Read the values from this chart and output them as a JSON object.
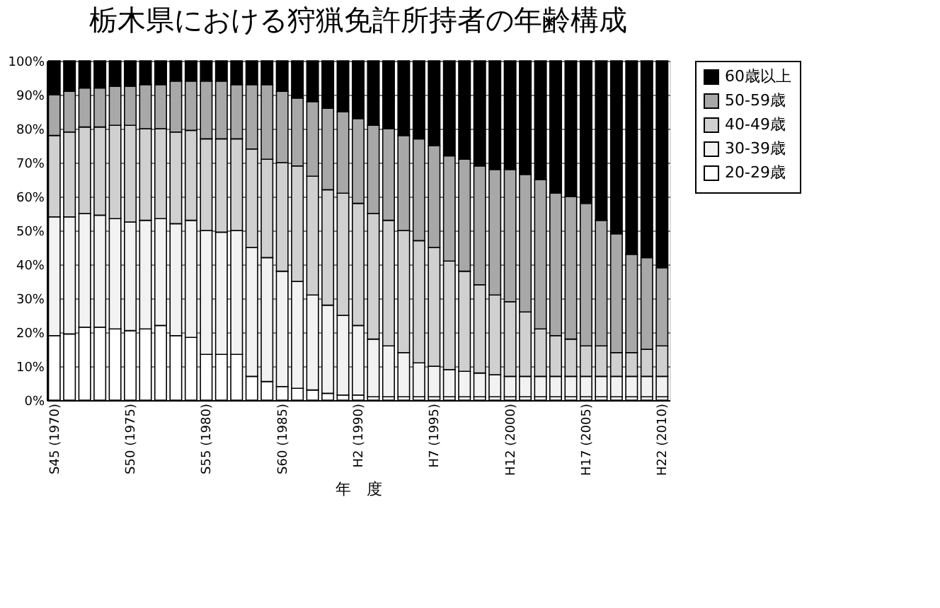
{
  "chart_data": {
    "type": "bar",
    "stacked": true,
    "title": "栃木県における狩猟免許所持者の年齢構成",
    "xlabel": "年　度",
    "categories": [
      "S45 (1970)",
      null,
      null,
      null,
      null,
      "S50 (1975)",
      null,
      null,
      null,
      null,
      "S55 (1980)",
      null,
      null,
      null,
      null,
      "S60 (1985)",
      null,
      null,
      null,
      null,
      "H2 (1990)",
      null,
      null,
      null,
      null,
      "H7 (1995)",
      null,
      null,
      null,
      null,
      "H12 (2000)",
      null,
      null,
      null,
      null,
      "H17 (2005)",
      null,
      null,
      null,
      null,
      "H22 (2010)"
    ],
    "series": [
      {
        "name": "20-29歳",
        "color": "#ffffff",
        "values": [
          19,
          19.5,
          21.5,
          21.5,
          21,
          20.5,
          21,
          22,
          19,
          18.5,
          13.5,
          13.5,
          13.5,
          7,
          5.5,
          4,
          3.5,
          3,
          2,
          1.5,
          1.5,
          1,
          1,
          1,
          1,
          1,
          1,
          1,
          1,
          1,
          1,
          1,
          1,
          1,
          1,
          1,
          1,
          1,
          1,
          1,
          1
        ]
      },
      {
        "name": "30-39歳",
        "color": "#f2f2f2",
        "values": [
          35,
          34.5,
          33.5,
          33,
          32.5,
          32,
          32,
          31.5,
          33,
          34.5,
          36.5,
          36,
          36.5,
          38,
          36.5,
          34,
          31.5,
          28,
          26,
          23.5,
          20.5,
          17,
          15,
          13,
          10,
          9,
          8,
          7.5,
          7,
          6.5,
          6,
          6,
          6,
          6,
          6,
          6,
          6,
          6,
          6,
          6,
          6
        ]
      },
      {
        "name": "40-49歳",
        "color": "#d0d0d0",
        "values": [
          24,
          25,
          25.5,
          26,
          27.5,
          28.5,
          27,
          26.5,
          27,
          26.5,
          27,
          27.5,
          27,
          29,
          29,
          32,
          34,
          35,
          34,
          36,
          36,
          37,
          37,
          36,
          36,
          35,
          32,
          29.5,
          26,
          23.5,
          22,
          19,
          14,
          12,
          11,
          9,
          9,
          7,
          7,
          8,
          9
        ]
      },
      {
        "name": "50-59歳",
        "color": "#a8a8a8",
        "values": [
          12,
          12,
          11.5,
          11.5,
          11.5,
          11.5,
          13,
          13,
          15,
          14.5,
          17,
          17,
          16,
          19,
          22,
          21,
          20,
          22,
          24,
          24,
          25,
          26,
          27,
          28,
          30,
          30,
          31,
          33,
          35,
          37,
          39,
          40.5,
          44,
          42,
          42,
          42,
          37,
          35,
          29,
          27,
          23
        ]
      },
      {
        "name": "60歳以上",
        "color": "#000000",
        "values": [
          10,
          9,
          8,
          8,
          7.5,
          7.5,
          7,
          7,
          6,
          6,
          6,
          6,
          7,
          7,
          7,
          9,
          11,
          12,
          14,
          15,
          17,
          19,
          20,
          22,
          23,
          25,
          28,
          29,
          31,
          32,
          32,
          33.5,
          35,
          39,
          40,
          42,
          47,
          51,
          57,
          58,
          61
        ]
      }
    ],
    "ylim": [
      0,
      100
    ],
    "yticks": [
      {
        "value": 0,
        "label": "0%"
      },
      {
        "value": 10,
        "label": "10%"
      },
      {
        "value": 20,
        "label": "20%"
      },
      {
        "value": 30,
        "label": "30%"
      },
      {
        "value": 40,
        "label": "40%"
      },
      {
        "value": 50,
        "label": "50%"
      },
      {
        "value": 60,
        "label": "60%"
      },
      {
        "value": 70,
        "label": "70%"
      },
      {
        "value": 80,
        "label": "80%"
      },
      {
        "value": 90,
        "label": "90%"
      },
      {
        "value": 100,
        "label": "100%"
      }
    ],
    "grid": "y",
    "legend": "right"
  }
}
